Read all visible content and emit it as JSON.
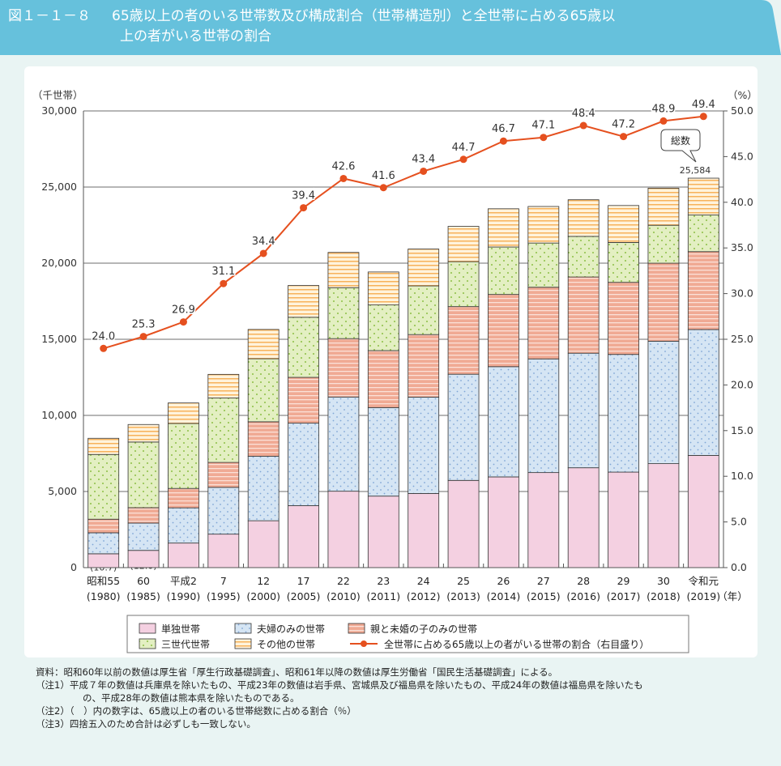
{
  "header": {
    "figure_number": "図１－１－８",
    "title_line1": "65歳以上の者のいる世帯数及び構成割合（世帯構造別）と全世帯に占める65歳以",
    "title_line2": "上の者がいる世帯の割合"
  },
  "colors": {
    "header": "#66c1dc",
    "single": "#f4d0e1",
    "couple": "#d5e5f4",
    "parent_child": "#f2b3a0",
    "three_generation": "#e3efc2",
    "other": "#fde1b0",
    "line": "#e5501f"
  },
  "chart_data": {
    "type": "stacked-bar+line",
    "left_axis_unit": "（千世帯）",
    "right_axis_unit": "（%）",
    "x_unit": "（年）",
    "ylim": [
      0,
      30000
    ],
    "y_ticks": [
      "0",
      "5,000",
      "10,000",
      "15,000",
      "20,000",
      "25,000",
      "30,000"
    ],
    "y2lim": [
      0,
      50
    ],
    "y2_ticks": [
      "0.0",
      "5.0",
      "10.0",
      "15.0",
      "20.0",
      "25.0",
      "30.0",
      "35.0",
      "40.0",
      "45.0",
      "50.0"
    ],
    "grid": true,
    "categories": [
      [
        "昭和55",
        "(1980)"
      ],
      [
        "60",
        "(1985)"
      ],
      [
        "平成2",
        "(1990)"
      ],
      [
        "7",
        "(1995)"
      ],
      [
        "12",
        "(2000)"
      ],
      [
        "17",
        "(2005)"
      ],
      [
        "22",
        "(2010)"
      ],
      [
        "23",
        "(2011)"
      ],
      [
        "24",
        "(2012)"
      ],
      [
        "25",
        "(2013)"
      ],
      [
        "26",
        "(2014)"
      ],
      [
        "27",
        "(2015)"
      ],
      [
        "28",
        "(2016)"
      ],
      [
        "29",
        "(2017)"
      ],
      [
        "30",
        "(2018)"
      ],
      [
        "令和元",
        "(2019)"
      ]
    ],
    "series": [
      {
        "key": "single",
        "name": "単独世帯",
        "values": [
          910,
          1131,
          1613,
          2199,
          3079,
          4069,
          5018,
          4697,
          4868,
          5730,
          5959,
          6243,
          6559,
          6274,
          6830,
          7369
        ],
        "shares": [
          10.7,
          12.0,
          14.9,
          17.3,
          19.7,
          22.0,
          24.2,
          24.2,
          23.3,
          25.6,
          25.3,
          26.3,
          27.1,
          26.4,
          27.4,
          28.8
        ]
      },
      {
        "key": "couple",
        "name": "夫婦のみの世帯",
        "values": [
          1379,
          1795,
          2314,
          3075,
          4234,
          5420,
          6190,
          5817,
          6332,
          6974,
          7242,
          7469,
          7526,
          7731,
          8045,
          8270
        ],
        "shares": [
          16.2,
          19.1,
          21.4,
          24.2,
          27.1,
          29.2,
          29.9,
          30.0,
          30.3,
          31.1,
          30.7,
          31.5,
          31.1,
          32.5,
          32.3,
          32.3
        ]
      },
      {
        "key": "parent_child",
        "name": "親と未婚の子のみの世帯",
        "values": [
          891,
          1012,
          1275,
          1636,
          2268,
          3010,
          3836,
          3743,
          4110,
          4442,
          4743,
          4704,
          5007,
          4734,
          5122,
          5118
        ],
        "shares": [
          10.5,
          10.8,
          11.8,
          12.9,
          14.5,
          16.2,
          18.5,
          19.3,
          19.6,
          19.8,
          20.1,
          19.8,
          20.7,
          19.9,
          20.5,
          20.0
        ]
      },
      {
        "key": "three_generation",
        "name": "三世代世帯",
        "values": [
          4254,
          4313,
          4270,
          4232,
          4141,
          3947,
          3348,
          2998,
          3199,
          2953,
          3117,
          2906,
          2668,
          2621,
          2493,
          2404
        ],
        "shares": [
          50.1,
          45.9,
          39.5,
          33.3,
          26.5,
          21.3,
          16.2,
          15.4,
          15.3,
          13.2,
          13.2,
          12.2,
          11.0,
          11.0,
          10.0,
          9.4
        ]
      },
      {
        "key": "other",
        "name": "その他の世帯",
        "values": [
          1062,
          1150,
          1345,
          1553,
          1924,
          2088,
          2313,
          2166,
          2420,
          2321,
          2512,
          2402,
          2405,
          2427,
          2437,
          2423
        ],
        "shares": [
          12.5,
          12.2,
          12.4,
          12.2,
          12.3,
          11.3,
          11.2,
          11.2,
          11.6,
          10.4,
          10.7,
          10.1,
          10.0,
          10.2,
          9.8,
          9.5
        ]
      }
    ],
    "line": {
      "name": "全世帯に占める65歳以上の者がいる世帯の割合（右目盛り）",
      "values": [
        24.0,
        25.3,
        26.9,
        31.1,
        34.4,
        39.4,
        42.6,
        41.6,
        43.4,
        44.7,
        46.7,
        47.1,
        48.4,
        47.2,
        48.9,
        49.4
      ]
    },
    "callout": {
      "label": "総数",
      "total": "25,584"
    }
  },
  "notes": [
    "資料：昭和60年以前の数値は厚生省「厚生行政基礎調査」、昭和61年以降の数値は厚生労働省「国民生活基礎調査」による。",
    "（注1）平成７年の数値は兵庫県を除いたもの、平成23年の数値は岩手県、宮城県及び福島県を除いたもの、平成24年の数値は福島県を除いたも",
    "の、平成28年の数値は熊本県を除いたものである。",
    "（注2）（　）内の数字は、65歳以上の者のいる世帯総数に占める割合（％）",
    "（注3）四捨五入のため合計は必ずしも一致しない。"
  ]
}
